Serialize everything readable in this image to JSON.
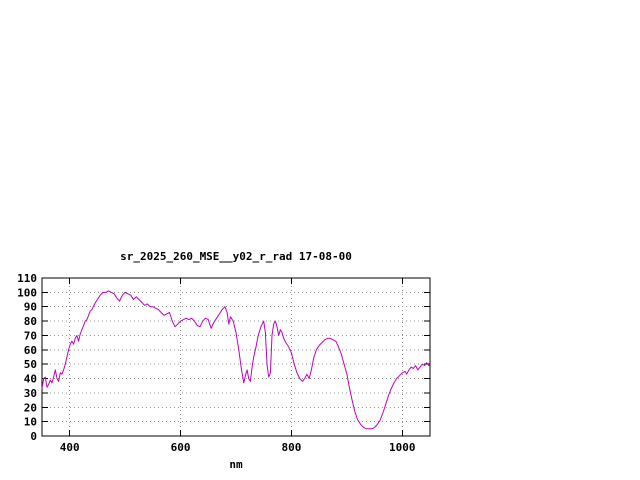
{
  "chart_data": {
    "type": "line",
    "title": "sr_2025_260_MSE__y02_r_rad 17-08-00",
    "xlabel": "nm",
    "ylabel": "",
    "xlim": [
      350,
      1050
    ],
    "ylim": [
      0,
      110
    ],
    "x_ticks": [
      400,
      600,
      800,
      1000
    ],
    "y_ticks": [
      0,
      10,
      20,
      30,
      40,
      50,
      60,
      70,
      80,
      90,
      100,
      110
    ],
    "grid": true,
    "legend_position": "none",
    "line_color": "#c000c0",
    "grid_color": "#909090",
    "axis_color": "#000000",
    "series": [
      {
        "name": "sr_2025_260_MSE__y02_r_rad",
        "points": [
          [
            350,
            33
          ],
          [
            353,
            40
          ],
          [
            356,
            41
          ],
          [
            359,
            34
          ],
          [
            362,
            36
          ],
          [
            365,
            39
          ],
          [
            368,
            37
          ],
          [
            371,
            41
          ],
          [
            374,
            46
          ],
          [
            377,
            40
          ],
          [
            380,
            38
          ],
          [
            383,
            44
          ],
          [
            386,
            43
          ],
          [
            389,
            46
          ],
          [
            392,
            50
          ],
          [
            395,
            55
          ],
          [
            398,
            60
          ],
          [
            401,
            64
          ],
          [
            404,
            66
          ],
          [
            407,
            64
          ],
          [
            410,
            68
          ],
          [
            413,
            70
          ],
          [
            416,
            66
          ],
          [
            419,
            71
          ],
          [
            422,
            74
          ],
          [
            425,
            77
          ],
          [
            428,
            80
          ],
          [
            431,
            81
          ],
          [
            434,
            84
          ],
          [
            437,
            87
          ],
          [
            440,
            88
          ],
          [
            445,
            92
          ],
          [
            450,
            95
          ],
          [
            455,
            98
          ],
          [
            460,
            100
          ],
          [
            465,
            100
          ],
          [
            470,
            101
          ],
          [
            475,
            100
          ],
          [
            480,
            99
          ],
          [
            485,
            96
          ],
          [
            490,
            94
          ],
          [
            495,
            98
          ],
          [
            500,
            100
          ],
          [
            505,
            99
          ],
          [
            510,
            98
          ],
          [
            515,
            95
          ],
          [
            520,
            97
          ],
          [
            525,
            95
          ],
          [
            530,
            93
          ],
          [
            535,
            91
          ],
          [
            540,
            92
          ],
          [
            545,
            90
          ],
          [
            550,
            90
          ],
          [
            555,
            89
          ],
          [
            560,
            88
          ],
          [
            565,
            86
          ],
          [
            570,
            84
          ],
          [
            575,
            85
          ],
          [
            580,
            86
          ],
          [
            585,
            80
          ],
          [
            590,
            76
          ],
          [
            595,
            78
          ],
          [
            600,
            80
          ],
          [
            605,
            81
          ],
          [
            610,
            82
          ],
          [
            615,
            81
          ],
          [
            620,
            82
          ],
          [
            625,
            80
          ],
          [
            630,
            77
          ],
          [
            635,
            76
          ],
          [
            640,
            80
          ],
          [
            645,
            82
          ],
          [
            650,
            81
          ],
          [
            655,
            75
          ],
          [
            660,
            79
          ],
          [
            665,
            82
          ],
          [
            670,
            85
          ],
          [
            675,
            88
          ],
          [
            680,
            90
          ],
          [
            684,
            86
          ],
          [
            687,
            78
          ],
          [
            690,
            83
          ],
          [
            695,
            80
          ],
          [
            700,
            72
          ],
          [
            705,
            60
          ],
          [
            710,
            46
          ],
          [
            714,
            37
          ],
          [
            717,
            42
          ],
          [
            720,
            46
          ],
          [
            723,
            40
          ],
          [
            726,
            38
          ],
          [
            729,
            48
          ],
          [
            732,
            55
          ],
          [
            736,
            62
          ],
          [
            740,
            70
          ],
          [
            745,
            76
          ],
          [
            750,
            80
          ],
          [
            753,
            72
          ],
          [
            756,
            50
          ],
          [
            759,
            41
          ],
          [
            762,
            44
          ],
          [
            765,
            70
          ],
          [
            768,
            78
          ],
          [
            771,
            80
          ],
          [
            774,
            76
          ],
          [
            777,
            70
          ],
          [
            780,
            74
          ],
          [
            783,
            72
          ],
          [
            786,
            68
          ],
          [
            790,
            65
          ],
          [
            795,
            62
          ],
          [
            800,
            58
          ],
          [
            805,
            50
          ],
          [
            810,
            44
          ],
          [
            815,
            40
          ],
          [
            820,
            38
          ],
          [
            824,
            40
          ],
          [
            828,
            43
          ],
          [
            832,
            40
          ],
          [
            836,
            46
          ],
          [
            840,
            54
          ],
          [
            845,
            60
          ],
          [
            850,
            63
          ],
          [
            855,
            65
          ],
          [
            860,
            67
          ],
          [
            865,
            68
          ],
          [
            870,
            68
          ],
          [
            875,
            67
          ],
          [
            880,
            66
          ],
          [
            885,
            62
          ],
          [
            890,
            57
          ],
          [
            895,
            50
          ],
          [
            900,
            43
          ],
          [
            905,
            33
          ],
          [
            910,
            24
          ],
          [
            915,
            16
          ],
          [
            920,
            11
          ],
          [
            925,
            8
          ],
          [
            930,
            6
          ],
          [
            935,
            5
          ],
          [
            940,
            5
          ],
          [
            945,
            5
          ],
          [
            950,
            6
          ],
          [
            955,
            8
          ],
          [
            960,
            11
          ],
          [
            965,
            16
          ],
          [
            970,
            22
          ],
          [
            975,
            28
          ],
          [
            980,
            33
          ],
          [
            985,
            37
          ],
          [
            990,
            40
          ],
          [
            995,
            42
          ],
          [
            1000,
            44
          ],
          [
            1005,
            45
          ],
          [
            1008,
            43
          ],
          [
            1012,
            46
          ],
          [
            1016,
            48
          ],
          [
            1020,
            47
          ],
          [
            1024,
            49
          ],
          [
            1028,
            46
          ],
          [
            1032,
            48
          ],
          [
            1036,
            50
          ],
          [
            1040,
            49
          ],
          [
            1044,
            51
          ],
          [
            1048,
            49
          ],
          [
            1050,
            50
          ]
        ]
      }
    ]
  }
}
